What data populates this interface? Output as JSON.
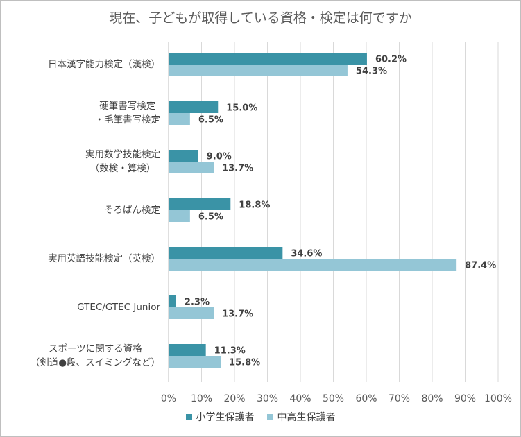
{
  "chart_data": {
    "type": "bar",
    "orientation": "horizontal",
    "title": "現在、子どもが取得している資格・検定は何ですか",
    "categories": [
      "日本漢字能力検定（漢検）",
      "硬筆書写検定\n・毛筆書写検定",
      "実用数学技能検定\n（数検・算検）",
      "そろばん検定",
      "実用英語技能検定（英検）",
      "GTEC/GTEC Junior",
      "スポーツに関する資格\n（剣道●段、スイミングなど）"
    ],
    "series": [
      {
        "name": "小学生保護者",
        "color": "#3A93A6",
        "values": [
          60.2,
          15.0,
          9.0,
          18.8,
          34.6,
          2.3,
          11.3
        ],
        "labels": [
          "60.2%",
          "15.0%",
          "9.0%",
          "18.8%",
          "34.6%",
          "2.3%",
          "11.3%"
        ]
      },
      {
        "name": "中高生保護者",
        "color": "#94C6D6",
        "values": [
          54.3,
          6.5,
          13.7,
          6.5,
          87.4,
          13.7,
          15.8
        ],
        "labels": [
          "54.3%",
          "6.5%",
          "13.7%",
          "6.5%",
          "87.4%",
          "13.7%",
          "15.8%"
        ]
      }
    ],
    "xlim": [
      0,
      100
    ],
    "xticks": [
      "0%",
      "10%",
      "20%",
      "30%",
      "40%",
      "50%",
      "60%",
      "70%",
      "80%",
      "90%",
      "100%"
    ],
    "grid": true,
    "legend": "bottom"
  }
}
